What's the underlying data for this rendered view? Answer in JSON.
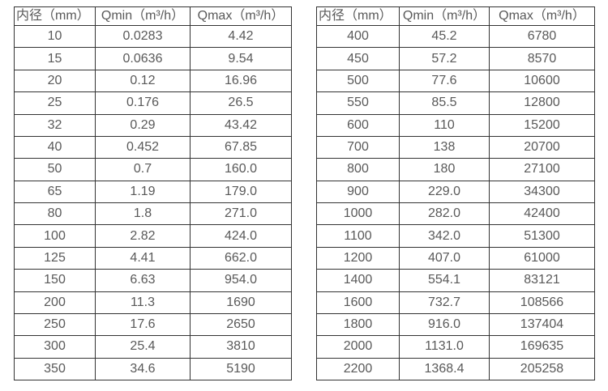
{
  "page": {
    "background": "#ffffff",
    "border_color": "#333333",
    "text_color": "#595959"
  },
  "tables": [
    {
      "name": "flow-table-dn10-350",
      "headers": [
        "内径（mm）",
        "Qmin（m³/h）",
        "Qmax（m³/h）"
      ],
      "rows": [
        [
          "10",
          "0.0283",
          "4.42"
        ],
        [
          "15",
          "0.0636",
          "9.54"
        ],
        [
          "20",
          "0.12",
          "16.96"
        ],
        [
          "25",
          "0.176",
          "26.5"
        ],
        [
          "32",
          "0.29",
          "43.42"
        ],
        [
          "40",
          "0.452",
          "67.85"
        ],
        [
          "50",
          "0.7",
          "160.0"
        ],
        [
          "65",
          "1.19",
          "179.0"
        ],
        [
          "80",
          "1.8",
          "271.0"
        ],
        [
          "100",
          "2.82",
          "424.0"
        ],
        [
          "125",
          "4.41",
          "662.0"
        ],
        [
          "150",
          "6.63",
          "954.0"
        ],
        [
          "200",
          "11.3",
          "1690"
        ],
        [
          "250",
          "17.6",
          "2650"
        ],
        [
          "300",
          "25.4",
          "3810"
        ],
        [
          "350",
          "34.6",
          "5190"
        ]
      ]
    },
    {
      "name": "flow-table-dn400-2200",
      "headers": [
        "内径（mm）",
        "Qmin（m³/h）",
        "Qmax（m³/h）"
      ],
      "rows": [
        [
          "400",
          "45.2",
          "6780"
        ],
        [
          "450",
          "57.2",
          "8570"
        ],
        [
          "500",
          "77.6",
          "10600"
        ],
        [
          "550",
          "85.5",
          "12800"
        ],
        [
          "600",
          "110",
          "15200"
        ],
        [
          "700",
          "138",
          "20700"
        ],
        [
          "800",
          "180",
          "27100"
        ],
        [
          "900",
          "229.0",
          "34300"
        ],
        [
          "1000",
          "282.0",
          "42400"
        ],
        [
          "1100",
          "342.0",
          "51300"
        ],
        [
          "1200",
          "407.0",
          "61000"
        ],
        [
          "1400",
          "554.1",
          "83121"
        ],
        [
          "1600",
          "732.7",
          "108566"
        ],
        [
          "1800",
          "916.0",
          "137404"
        ],
        [
          "2000",
          "1131.0",
          "169635"
        ],
        [
          "2200",
          "1368.4",
          "205258"
        ]
      ]
    }
  ]
}
